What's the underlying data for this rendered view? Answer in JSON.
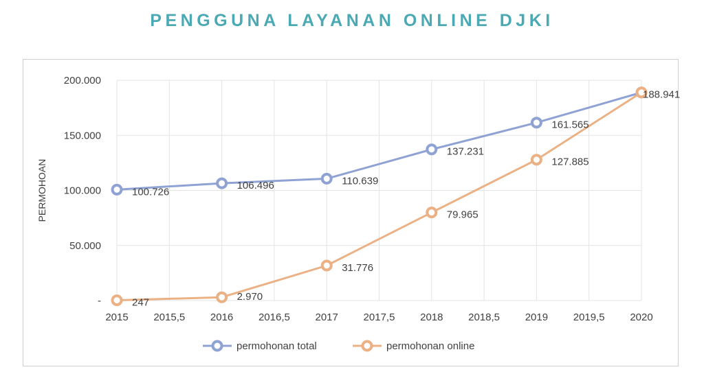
{
  "page": {
    "title": "PENGGUNA LAYANAN ONLINE DJKI"
  },
  "chart_data": {
    "type": "line",
    "title": "",
    "xlabel": "",
    "ylabel": "PERMOHOAN",
    "xlim": [
      2015,
      2020
    ],
    "ylim": [
      0,
      200000
    ],
    "x_ticks": [
      "2015",
      "2015,5",
      "2016",
      "2016,5",
      "2017",
      "2017,5",
      "2018",
      "2018,5",
      "2019",
      "2019,5",
      "2020"
    ],
    "y_ticks": [
      "-",
      "50.000",
      "100.000",
      "150.000",
      "200.000"
    ],
    "grid": true,
    "legend_position": "bottom",
    "x": [
      2015,
      2016,
      2017,
      2018,
      2019,
      2020
    ],
    "series": [
      {
        "name": "permohonan total",
        "color": "#8fa2d4",
        "values": [
          100726,
          106496,
          110639,
          137231,
          161565,
          188941
        ],
        "labels": [
          "100.726",
          "106.496",
          "110.639",
          "137.231",
          "161.565",
          "188.941"
        ]
      },
      {
        "name": "permohonan online",
        "color": "#ebb184",
        "values": [
          247,
          2970,
          31776,
          79965,
          127885,
          188941
        ],
        "labels": [
          "247",
          "2.970",
          "31.776",
          "79.965",
          "127.885",
          ""
        ]
      }
    ]
  }
}
